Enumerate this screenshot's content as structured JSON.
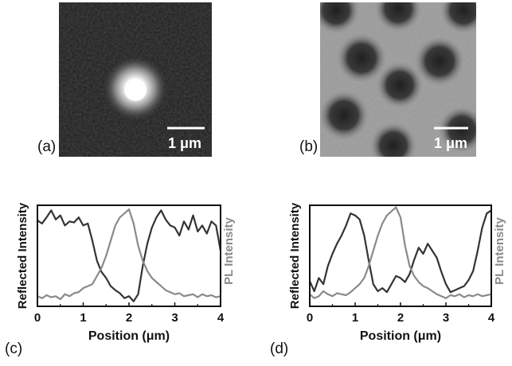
{
  "panels": {
    "a": {
      "label": "(a)",
      "scalebar": "1 μm"
    },
    "b": {
      "label": "(b)",
      "scalebar": "1 μm"
    },
    "c": {
      "label": "(c)"
    },
    "d": {
      "label": "(d)"
    }
  },
  "colors": {
    "reflected": "#333333",
    "pl": "#8a8a8a",
    "axis": "#111111"
  },
  "chart_data": [
    {
      "type": "line",
      "panel": "c",
      "xlabel": "Position (μm)",
      "ylabel": "Reflected Intensity",
      "ylabel_right": "PL Intensity",
      "xlim": [
        0,
        4
      ],
      "ylim": [
        0,
        1
      ],
      "xticks": [
        "0",
        "1",
        "2",
        "3",
        "4"
      ],
      "series": [
        {
          "role": "reflected",
          "x": [
            0,
            0.1,
            0.2,
            0.3,
            0.4,
            0.5,
            0.6,
            0.7,
            0.8,
            0.9,
            1.0,
            1.1,
            1.2,
            1.3,
            1.4,
            1.5,
            1.6,
            1.7,
            1.8,
            1.9,
            2.0,
            2.1,
            2.2,
            2.3,
            2.4,
            2.5,
            2.6,
            2.7,
            2.8,
            2.9,
            3.0,
            3.1,
            3.2,
            3.3,
            3.4,
            3.5,
            3.6,
            3.7,
            3.8,
            3.9,
            4.0
          ],
          "y": [
            0.85,
            0.82,
            0.88,
            0.95,
            0.86,
            0.9,
            0.8,
            0.84,
            0.83,
            0.88,
            0.8,
            0.82,
            0.65,
            0.45,
            0.34,
            0.28,
            0.2,
            0.16,
            0.13,
            0.08,
            0.1,
            0.05,
            0.12,
            0.4,
            0.62,
            0.78,
            0.88,
            0.95,
            0.86,
            0.8,
            0.78,
            0.7,
            0.84,
            0.76,
            0.9,
            0.74,
            0.8,
            0.72,
            0.84,
            0.8,
            0.55
          ]
        },
        {
          "role": "pl",
          "x": [
            0,
            0.1,
            0.2,
            0.3,
            0.4,
            0.5,
            0.6,
            0.7,
            0.8,
            0.9,
            1.0,
            1.1,
            1.2,
            1.3,
            1.4,
            1.5,
            1.6,
            1.7,
            1.8,
            1.9,
            2.0,
            2.1,
            2.2,
            2.3,
            2.4,
            2.5,
            2.6,
            2.7,
            2.8,
            2.9,
            3.0,
            3.1,
            3.2,
            3.3,
            3.4,
            3.5,
            3.6,
            3.7,
            3.8,
            3.9,
            4.0
          ],
          "y": [
            0.1,
            0.08,
            0.11,
            0.09,
            0.1,
            0.07,
            0.12,
            0.1,
            0.13,
            0.14,
            0.18,
            0.2,
            0.22,
            0.3,
            0.38,
            0.5,
            0.65,
            0.8,
            0.88,
            0.92,
            0.96,
            0.82,
            0.6,
            0.45,
            0.35,
            0.28,
            0.24,
            0.2,
            0.16,
            0.14,
            0.12,
            0.13,
            0.1,
            0.11,
            0.12,
            0.09,
            0.12,
            0.1,
            0.11,
            0.09,
            0.1
          ]
        }
      ]
    },
    {
      "type": "line",
      "panel": "d",
      "xlabel": "Position (μm)",
      "ylabel": "Reflected Intensity",
      "ylabel_right": "PL Intensity",
      "xlim": [
        0,
        4
      ],
      "ylim": [
        0,
        1
      ],
      "xticks": [
        "0",
        "1",
        "2",
        "3",
        "4"
      ],
      "series": [
        {
          "role": "reflected",
          "x": [
            0,
            0.1,
            0.2,
            0.3,
            0.4,
            0.5,
            0.6,
            0.7,
            0.8,
            0.9,
            1.0,
            1.1,
            1.2,
            1.3,
            1.4,
            1.5,
            1.6,
            1.7,
            1.8,
            1.9,
            2.0,
            2.1,
            2.2,
            2.3,
            2.4,
            2.5,
            2.6,
            2.7,
            2.8,
            2.9,
            3.0,
            3.1,
            3.2,
            3.3,
            3.4,
            3.5,
            3.6,
            3.7,
            3.8,
            3.9,
            4.0
          ],
          "y": [
            0.25,
            0.15,
            0.28,
            0.22,
            0.4,
            0.52,
            0.62,
            0.7,
            0.8,
            0.92,
            0.9,
            0.86,
            0.7,
            0.45,
            0.22,
            0.15,
            0.18,
            0.14,
            0.22,
            0.3,
            0.28,
            0.24,
            0.32,
            0.46,
            0.58,
            0.52,
            0.62,
            0.55,
            0.48,
            0.34,
            0.22,
            0.14,
            0.16,
            0.18,
            0.2,
            0.26,
            0.35,
            0.55,
            0.78,
            0.92,
            0.95
          ]
        },
        {
          "role": "pl",
          "x": [
            0,
            0.1,
            0.2,
            0.3,
            0.4,
            0.5,
            0.6,
            0.7,
            0.8,
            0.9,
            1.0,
            1.1,
            1.2,
            1.3,
            1.4,
            1.5,
            1.6,
            1.7,
            1.8,
            1.9,
            2.0,
            2.1,
            2.2,
            2.3,
            2.4,
            2.5,
            2.6,
            2.7,
            2.8,
            2.9,
            3.0,
            3.1,
            3.2,
            3.3,
            3.4,
            3.5,
            3.6,
            3.7,
            3.8,
            3.9,
            4.0
          ],
          "y": [
            0.12,
            0.08,
            0.1,
            0.15,
            0.12,
            0.1,
            0.13,
            0.12,
            0.11,
            0.14,
            0.18,
            0.22,
            0.28,
            0.4,
            0.55,
            0.7,
            0.82,
            0.9,
            0.94,
            0.98,
            0.88,
            0.6,
            0.4,
            0.3,
            0.24,
            0.2,
            0.18,
            0.15,
            0.12,
            0.1,
            0.08,
            0.11,
            0.1,
            0.12,
            0.09,
            0.11,
            0.1,
            0.12,
            0.1,
            0.11,
            0.12
          ]
        }
      ]
    }
  ]
}
